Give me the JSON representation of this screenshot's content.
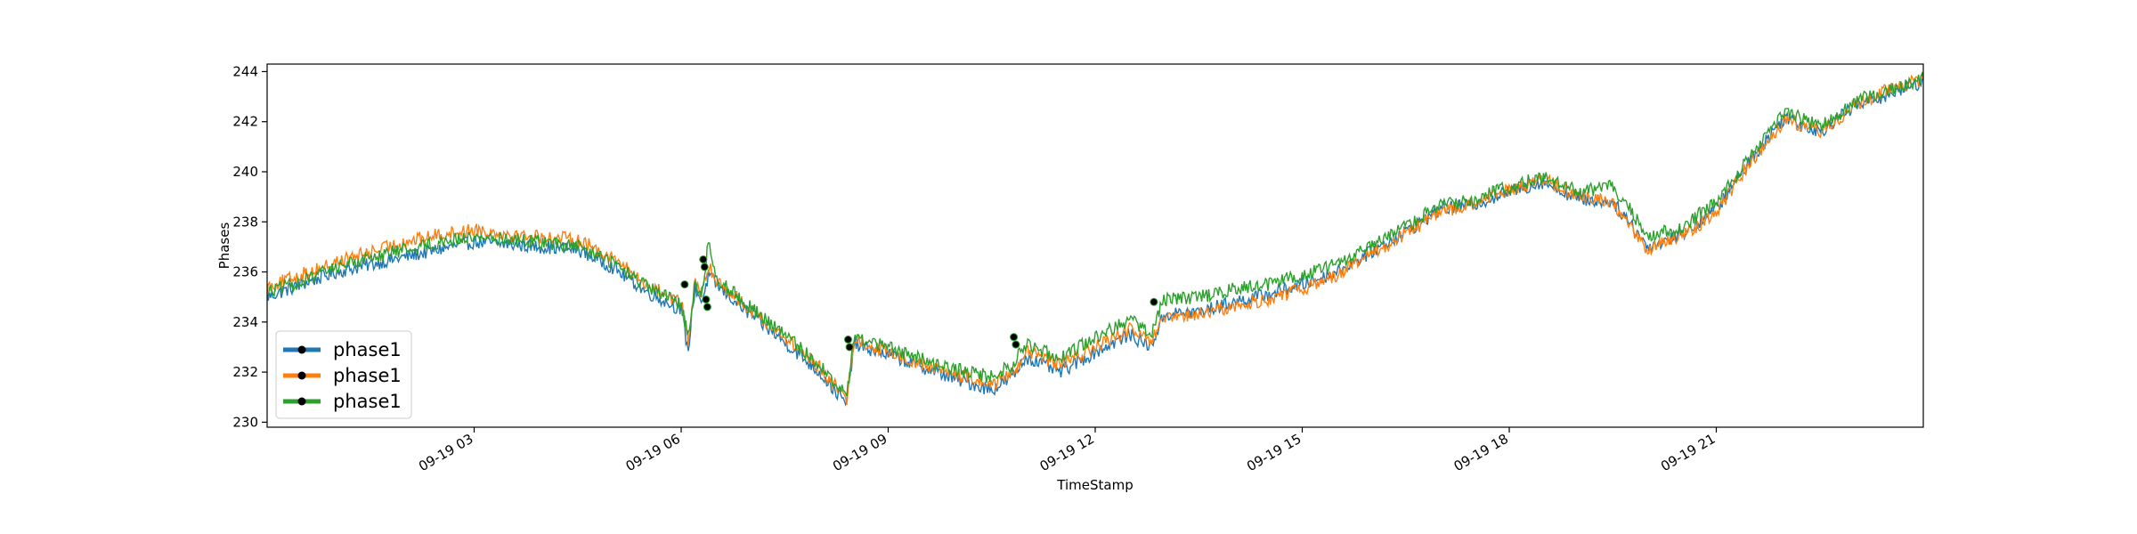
{
  "chart_data": {
    "type": "line",
    "title": "",
    "xlabel": "TimeStamp",
    "ylabel": "Phases",
    "xlim": [
      "09-19 00:00",
      "24:00"
    ],
    "ylim": [
      229.8,
      244.3
    ],
    "x_ticks": [
      "09-19 03",
      "09-19 06",
      "09-19 09",
      "09-19 12",
      "09-19 15",
      "09-19 18",
      "09-19 21"
    ],
    "x_tick_hours": [
      3,
      6,
      9,
      12,
      15,
      18,
      21
    ],
    "y_ticks": [
      "230",
      "232",
      "234",
      "236",
      "238",
      "240",
      "242",
      "244"
    ],
    "y_tick_values": [
      230,
      232,
      234,
      236,
      238,
      240,
      242,
      244
    ],
    "legend_position": "lower-left",
    "grid": false,
    "x": [
      0,
      0.5,
      1,
      1.5,
      2,
      2.5,
      3,
      3.5,
      4,
      4.5,
      5,
      5.5,
      6,
      6.1,
      6.2,
      6.3,
      6.4,
      6.5,
      7,
      7.5,
      8,
      8.4,
      8.5,
      9,
      9.5,
      10,
      10.5,
      10.8,
      11,
      11.5,
      12,
      12.5,
      12.8,
      13,
      13.5,
      14,
      14.5,
      15,
      15.5,
      16,
      16.5,
      17,
      17.5,
      18,
      18.5,
      19,
      19.5,
      19.8,
      20,
      20.5,
      21,
      21.5,
      22,
      22.5,
      23,
      23.5,
      24
    ],
    "series": [
      {
        "name": "phase1",
        "color": "#1f77b4",
        "values": [
          235.0,
          235.5,
          236.0,
          236.3,
          236.6,
          236.9,
          237.2,
          237.1,
          237.0,
          236.9,
          236.2,
          235.2,
          234.5,
          232.8,
          235.4,
          234.8,
          235.9,
          235.5,
          234.3,
          233.2,
          232.0,
          230.7,
          233.1,
          232.7,
          232.2,
          231.7,
          231.3,
          231.8,
          232.6,
          232.0,
          232.8,
          233.5,
          233.0,
          234.3,
          234.4,
          234.8,
          235.1,
          235.5,
          236.0,
          236.8,
          237.6,
          238.5,
          238.7,
          239.2,
          239.6,
          238.9,
          238.8,
          237.8,
          237.0,
          237.5,
          238.5,
          240.5,
          242.2,
          241.6,
          242.6,
          243.1,
          243.6
        ]
      },
      {
        "name": "phase1",
        "color": "#ff7f0e",
        "values": [
          235.4,
          235.9,
          236.4,
          236.8,
          237.2,
          237.5,
          237.7,
          237.5,
          237.4,
          237.3,
          236.6,
          235.5,
          234.8,
          233.2,
          235.6,
          235.1,
          236.2,
          235.7,
          234.5,
          233.4,
          232.2,
          230.9,
          233.3,
          232.8,
          232.3,
          231.9,
          231.5,
          232.0,
          232.8,
          232.3,
          233.0,
          233.7,
          233.2,
          234.1,
          234.3,
          234.6,
          234.9,
          235.3,
          235.9,
          236.7,
          237.5,
          238.4,
          238.7,
          239.3,
          239.7,
          239.0,
          238.8,
          237.6,
          236.9,
          237.4,
          238.4,
          240.4,
          242.1,
          241.6,
          242.6,
          243.3,
          243.7
        ]
      },
      {
        "name": "phase1",
        "color": "#2ca02c",
        "values": [
          235.2,
          235.6,
          236.2,
          236.6,
          236.9,
          237.2,
          237.4,
          237.3,
          237.2,
          237.0,
          236.4,
          235.4,
          234.7,
          233.5,
          235.5,
          235.0,
          237.3,
          235.8,
          234.6,
          233.5,
          232.3,
          231.0,
          233.4,
          233.0,
          232.5,
          232.1,
          231.8,
          232.3,
          233.1,
          232.6,
          233.4,
          234.1,
          233.5,
          234.9,
          235.0,
          235.3,
          235.5,
          235.9,
          236.3,
          237.0,
          237.8,
          238.7,
          238.9,
          239.4,
          239.8,
          239.2,
          239.4,
          238.3,
          237.4,
          237.8,
          238.8,
          240.6,
          242.4,
          241.8,
          242.8,
          243.3,
          243.7
        ]
      }
    ],
    "markers": [
      {
        "x": 6.05,
        "y": 235.5
      },
      {
        "x": 6.32,
        "y": 236.5
      },
      {
        "x": 6.34,
        "y": 236.2
      },
      {
        "x": 6.36,
        "y": 234.9
      },
      {
        "x": 6.38,
        "y": 234.6
      },
      {
        "x": 8.42,
        "y": 233.3
      },
      {
        "x": 8.44,
        "y": 233.0
      },
      {
        "x": 10.82,
        "y": 233.4
      },
      {
        "x": 10.85,
        "y": 233.1
      },
      {
        "x": 12.85,
        "y": 234.8
      }
    ],
    "legend": [
      "phase1",
      "phase1",
      "phase1"
    ]
  }
}
